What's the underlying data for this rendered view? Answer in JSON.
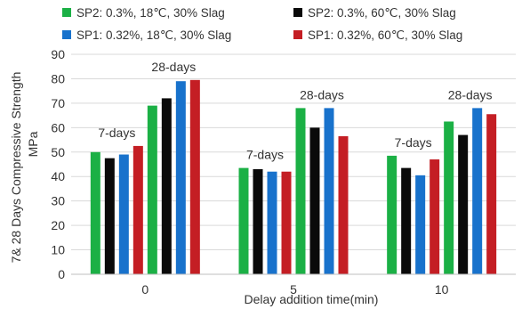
{
  "chart_data": {
    "type": "bar",
    "title": "",
    "xlabel": "Delay addition time(min)",
    "ylabel_line1": "7& 28 Days Compressive Strength",
    "ylabel_line2": "MPa",
    "ylim": [
      0,
      90
    ],
    "yticks": [
      "0",
      "10",
      "20",
      "30",
      "40",
      "50",
      "60",
      "70",
      "80",
      "90"
    ],
    "categories": [
      "0",
      "5",
      "10"
    ],
    "grid": "horizontal",
    "legend_position": "top",
    "group_labels": {
      "seven_day": "7-days",
      "twenty_eight_day": "28-days"
    },
    "series": [
      {
        "name": "SP2: 0.3%, 18℃, 30% Slag",
        "age": "7-days",
        "color": "#1bb045",
        "values": [
          50,
          43.5,
          48.5
        ]
      },
      {
        "name": "SP2: 0.3%, 60℃, 30% Slag",
        "age": "7-days",
        "color": "#0a0a0a",
        "values": [
          47.5,
          43,
          43.5
        ]
      },
      {
        "name": "SP1: 0.32%, 18℃, 30% Slag",
        "age": "7-days",
        "color": "#1872cc",
        "values": [
          49,
          42,
          40.5
        ]
      },
      {
        "name": "SP1: 0.32%, 60℃, 30% Slag",
        "age": "7-days",
        "color": "#c41e24",
        "values": [
          52.5,
          42,
          47
        ]
      },
      {
        "name": "SP2: 0.3%, 18℃, 30% Slag",
        "age": "28-days",
        "color": "#1bb045",
        "values": [
          69,
          68,
          62.5
        ]
      },
      {
        "name": "SP2: 0.3%, 60℃, 30% Slag",
        "age": "28-days",
        "color": "#0a0a0a",
        "values": [
          72,
          60,
          57
        ]
      },
      {
        "name": "SP1: 0.32%, 18℃, 30% Slag",
        "age": "28-days",
        "color": "#1872cc",
        "values": [
          79,
          68,
          68
        ]
      },
      {
        "name": "SP1: 0.32%, 60℃, 30% Slag",
        "age": "28-days",
        "color": "#c41e24",
        "values": [
          79.5,
          56.5,
          65.5
        ]
      }
    ],
    "legend": [
      {
        "label": "SP2: 0.3%, 18℃, 30% Slag",
        "color": "#1bb045"
      },
      {
        "label": "SP1: 0.32%, 18℃, 30% Slag",
        "color": "#1872cc"
      },
      {
        "label": "SP2: 0.3%, 60℃, 30% Slag",
        "color": "#0a0a0a"
      },
      {
        "label": "SP1: 0.32%, 60℃, 30% Slag",
        "color": "#c41e24"
      }
    ]
  }
}
